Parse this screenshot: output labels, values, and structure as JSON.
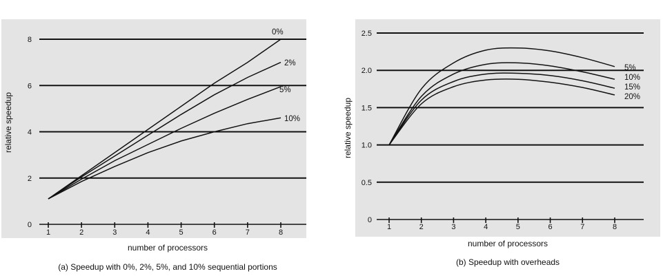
{
  "chart_data": [
    {
      "type": "line",
      "caption": "(a) Speedup with 0%, 2%, 5%, and 10% sequential portions",
      "xlabel": "number of processors",
      "ylabel": "relative speedup",
      "xlim": [
        1,
        8
      ],
      "ylim": [
        0,
        8
      ],
      "xticks": [
        "1",
        "2",
        "3",
        "4",
        "5",
        "6",
        "7",
        "8"
      ],
      "yticks": [
        "0",
        "2",
        "4",
        "6",
        "8"
      ],
      "gridlines": [
        2,
        4,
        6,
        8
      ],
      "x": [
        1,
        2,
        3,
        4,
        5,
        6,
        7,
        8
      ],
      "series": [
        {
          "name": "0%",
          "values": [
            1.1,
            2.1,
            3.1,
            4.1,
            5.1,
            6.1,
            7.0,
            8.0
          ]
        },
        {
          "name": "2%",
          "values": [
            1.1,
            2.05,
            2.95,
            3.85,
            4.75,
            5.6,
            6.35,
            7.0
          ]
        },
        {
          "name": "5%",
          "values": [
            1.1,
            1.95,
            2.75,
            3.45,
            4.15,
            4.8,
            5.4,
            5.95
          ]
        },
        {
          "name": "10%",
          "values": [
            1.1,
            1.85,
            2.5,
            3.1,
            3.6,
            4.0,
            4.35,
            4.6
          ]
        }
      ]
    },
    {
      "type": "line",
      "caption": "(b) Speedup with overheads",
      "xlabel": "number of processors",
      "ylabel": "relative speedup",
      "xlim": [
        1,
        8
      ],
      "ylim": [
        0,
        2.5
      ],
      "xticks": [
        "1",
        "2",
        "3",
        "4",
        "5",
        "6",
        "7",
        "8"
      ],
      "yticks": [
        "0",
        "0.5",
        "1.0",
        "1.5",
        "2.0",
        "2.5"
      ],
      "gridlines": [
        0.5,
        1.0,
        1.5,
        2.0,
        2.5
      ],
      "x": [
        1,
        2,
        3,
        4,
        5,
        6,
        7,
        8
      ],
      "series": [
        {
          "name": "5%",
          "values": [
            1.0,
            1.75,
            2.1,
            2.27,
            2.3,
            2.26,
            2.17,
            2.05
          ]
        },
        {
          "name": "10%",
          "values": [
            1.0,
            1.65,
            1.95,
            2.08,
            2.1,
            2.06,
            1.98,
            1.88
          ]
        },
        {
          "name": "15%",
          "values": [
            1.0,
            1.6,
            1.85,
            1.95,
            1.96,
            1.93,
            1.86,
            1.76
          ]
        },
        {
          "name": "20%",
          "values": [
            1.0,
            1.55,
            1.78,
            1.87,
            1.88,
            1.84,
            1.77,
            1.67
          ]
        }
      ]
    }
  ]
}
